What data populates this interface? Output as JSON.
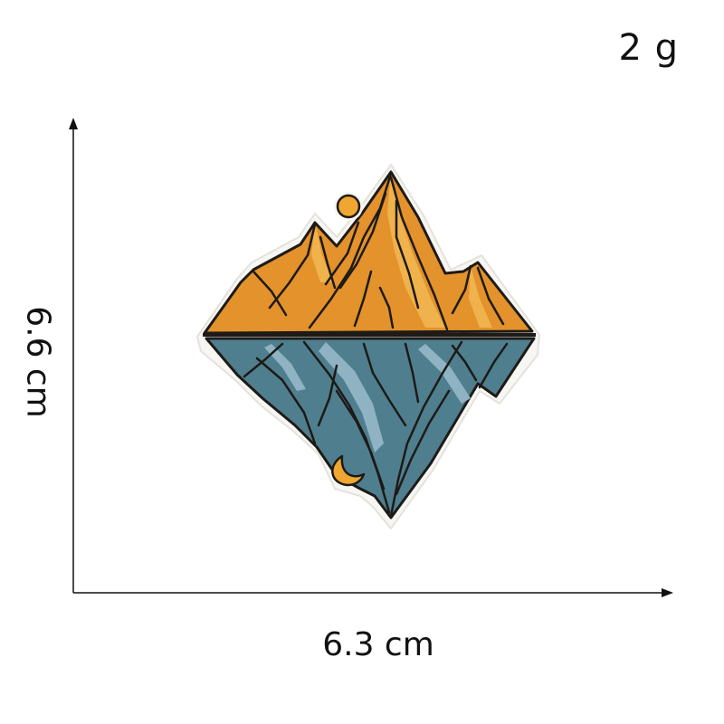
{
  "labels": {
    "weight": "2 g",
    "width": "6.3 cm",
    "height": "6.6 cm"
  },
  "colors": {
    "axis": "#111111",
    "mountain_orange": "#e3922c",
    "mountain_orange_light": "#f0b24c",
    "reflection_blue": "#4f7f8e",
    "reflection_blue_light": "#8fb3c2",
    "outline": "#1d1a17",
    "sun": "#f0a732"
  },
  "icons": [
    "embroidered-mountain-patch",
    "sun-icon",
    "moon-icon"
  ]
}
